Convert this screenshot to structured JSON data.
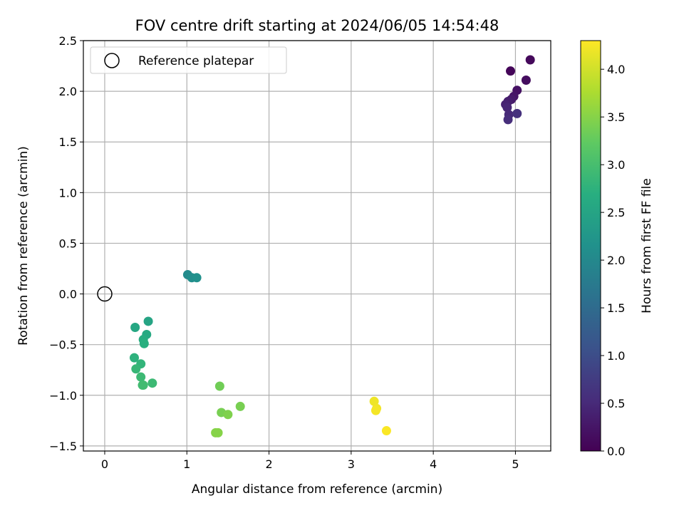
{
  "chart_data": {
    "type": "scatter",
    "title": "FOV centre drift starting at 2024/06/05 14:54:48",
    "xlabel": "Angular distance from reference (arcmin)",
    "ylabel": "Rotation from reference (arcmin)",
    "xlim": [
      -0.26,
      5.43
    ],
    "ylim": [
      -1.55,
      2.5
    ],
    "xticks": [
      0,
      1,
      2,
      3,
      4,
      5
    ],
    "xtick_labels": [
      "0",
      "1",
      "2",
      "3",
      "4",
      "5"
    ],
    "yticks": [
      -1.5,
      -1.0,
      -0.5,
      0.0,
      0.5,
      1.0,
      1.5,
      2.0,
      2.5
    ],
    "ytick_labels": [
      "−1.5",
      "−1.0",
      "−0.5",
      "0.0",
      "0.5",
      "1.0",
      "1.5",
      "2.0",
      "2.5"
    ],
    "grid": true,
    "legend": {
      "position": "top-left",
      "entries": [
        "Reference platepar"
      ]
    },
    "reference_point": {
      "x": 0.0,
      "y": 0.0,
      "label": "Reference platepar"
    },
    "colorbar": {
      "label": "Hours from first FF file",
      "colormap": "viridis",
      "range": [
        0.0,
        4.3
      ],
      "ticks": [
        0.0,
        0.5,
        1.0,
        1.5,
        2.0,
        2.5,
        3.0,
        3.5,
        4.0
      ],
      "tick_labels": [
        "0.0",
        "0.5",
        "1.0",
        "1.5",
        "2.0",
        "2.5",
        "3.0",
        "3.5",
        "4.0"
      ]
    },
    "points": [
      {
        "x": 4.94,
        "y": 2.2,
        "hours": 0.05
      },
      {
        "x": 5.18,
        "y": 2.31,
        "hours": 0.1
      },
      {
        "x": 5.13,
        "y": 2.11,
        "hours": 0.15
      },
      {
        "x": 5.02,
        "y": 2.01,
        "hours": 0.2
      },
      {
        "x": 4.98,
        "y": 1.95,
        "hours": 0.25
      },
      {
        "x": 4.95,
        "y": 1.92,
        "hours": 0.3
      },
      {
        "x": 4.91,
        "y": 1.9,
        "hours": 0.35
      },
      {
        "x": 4.88,
        "y": 1.87,
        "hours": 0.4
      },
      {
        "x": 4.9,
        "y": 1.84,
        "hours": 0.45
      },
      {
        "x": 4.92,
        "y": 1.77,
        "hours": 0.5
      },
      {
        "x": 4.91,
        "y": 1.72,
        "hours": 0.55
      },
      {
        "x": 5.02,
        "y": 1.78,
        "hours": 0.6
      },
      {
        "x": 1.01,
        "y": 0.19,
        "hours": 2.05
      },
      {
        "x": 1.06,
        "y": 0.16,
        "hours": 2.1
      },
      {
        "x": 1.12,
        "y": 0.16,
        "hours": 2.15
      },
      {
        "x": 0.53,
        "y": -0.27,
        "hours": 2.5
      },
      {
        "x": 0.37,
        "y": -0.33,
        "hours": 2.55
      },
      {
        "x": 0.51,
        "y": -0.4,
        "hours": 2.6
      },
      {
        "x": 0.47,
        "y": -0.45,
        "hours": 2.65
      },
      {
        "x": 0.48,
        "y": -0.49,
        "hours": 2.7
      },
      {
        "x": 0.36,
        "y": -0.63,
        "hours": 2.75
      },
      {
        "x": 0.44,
        "y": -0.69,
        "hours": 2.8
      },
      {
        "x": 0.38,
        "y": -0.74,
        "hours": 2.85
      },
      {
        "x": 0.44,
        "y": -0.82,
        "hours": 2.9
      },
      {
        "x": 0.58,
        "y": -0.88,
        "hours": 2.9
      },
      {
        "x": 0.46,
        "y": -0.9,
        "hours": 2.95
      },
      {
        "x": 0.47,
        "y": -0.9,
        "hours": 2.95
      },
      {
        "x": 1.4,
        "y": -0.91,
        "hours": 3.35
      },
      {
        "x": 1.65,
        "y": -1.11,
        "hours": 3.4
      },
      {
        "x": 1.42,
        "y": -1.17,
        "hours": 3.4
      },
      {
        "x": 1.5,
        "y": -1.19,
        "hours": 3.45
      },
      {
        "x": 1.35,
        "y": -1.37,
        "hours": 3.5
      },
      {
        "x": 1.38,
        "y": -1.37,
        "hours": 3.5
      },
      {
        "x": 3.28,
        "y": -1.06,
        "hours": 4.2
      },
      {
        "x": 3.31,
        "y": -1.13,
        "hours": 4.22
      },
      {
        "x": 3.3,
        "y": -1.15,
        "hours": 4.24
      },
      {
        "x": 3.43,
        "y": -1.35,
        "hours": 4.28
      }
    ]
  }
}
